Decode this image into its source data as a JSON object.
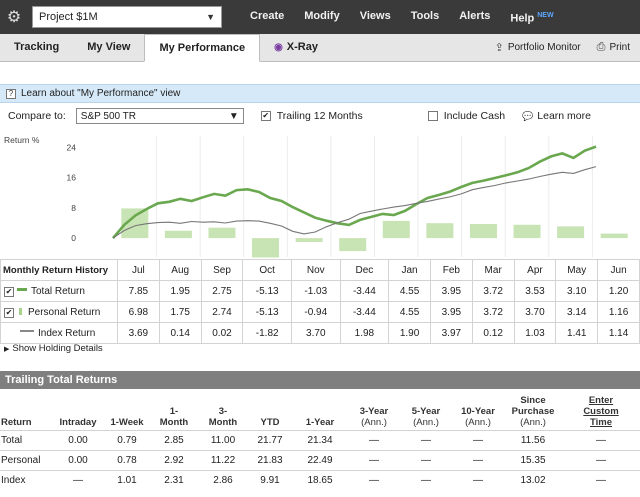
{
  "topbar": {
    "portfolio": "Project $1M",
    "menu": [
      "Create",
      "Modify",
      "Views",
      "Tools",
      "Alerts",
      "Help"
    ],
    "new_badge": "NEW"
  },
  "tabs": {
    "items": [
      "Tracking",
      "My View",
      "My Performance",
      "X-Ray"
    ],
    "active": "My Performance",
    "portfolio_monitor": "Portfolio Monitor",
    "print": "Print"
  },
  "info": {
    "learn_text": "Learn about \"My Performance\" view"
  },
  "compare": {
    "label": "Compare to:",
    "selected": "S&P 500 TR",
    "trailing_label": "Trailing 12 Months",
    "trailing_checked": true,
    "include_cash_label": "Include Cash",
    "include_cash_checked": false,
    "learn_more": "Learn more"
  },
  "chart_data": {
    "type": "line",
    "ylabel": "Return %",
    "yticks": [
      0,
      8,
      16,
      24
    ],
    "ylim": [
      -5,
      27
    ],
    "bars": {
      "categories": [
        "Jul",
        "Aug",
        "Sep",
        "Oct",
        "Nov",
        "Dec",
        "Jan",
        "Feb",
        "Mar",
        "Apr",
        "May",
        "Jun"
      ],
      "values": [
        7.85,
        1.95,
        2.75,
        -5.13,
        -1.03,
        -3.44,
        4.55,
        3.95,
        3.72,
        3.53,
        3.1,
        1.2
      ]
    },
    "series": [
      {
        "name": "Total Return",
        "color": "#6aa84f",
        "points": [
          0,
          3.5,
          6,
          7.7,
          9.2,
          9.6,
          10.4,
          9.8,
          10.8,
          11.7,
          11.2,
          12.7,
          12.9,
          12.2,
          10.6,
          9.8,
          8.2,
          6.8,
          5.4,
          4.6,
          3.9,
          3.5,
          4.8,
          5.6,
          6.4,
          6.1,
          7.2,
          9.0,
          10.6,
          11.4,
          12.3,
          13.5,
          14.6,
          15.2,
          15.9,
          16.6,
          17.4,
          18.5,
          20.2,
          21.6,
          22.4,
          21.2,
          23.1,
          24.2
        ]
      },
      {
        "name": "Index Return",
        "color": "#777777",
        "points": [
          0,
          2.0,
          3.3,
          3.8,
          4.1,
          4.2,
          3.9,
          4.4,
          4.2,
          4.3,
          4.0,
          4.5,
          4.6,
          4.5,
          3.9,
          3.2,
          1.8,
          1.1,
          1.6,
          3.0,
          4.1,
          5.0,
          6.5,
          7.1,
          7.7,
          8.2,
          8.6,
          9.2,
          9.7,
          10.3,
          10.9,
          11.7,
          12.8,
          13.4,
          13.9,
          14.6,
          15.1,
          15.6,
          16.3,
          16.9,
          17.4,
          17.1,
          18.1,
          18.9
        ]
      }
    ]
  },
  "monthly": {
    "title": "Monthly Return History",
    "months": [
      "Jul",
      "Aug",
      "Sep",
      "Oct",
      "Nov",
      "Dec",
      "Jan",
      "Feb",
      "Mar",
      "Apr",
      "May",
      "Jun"
    ],
    "rows": [
      {
        "label": "Total Return",
        "checked": true,
        "values": [
          "7.85",
          "1.95",
          "2.75",
          "-5.13",
          "-1.03",
          "-3.44",
          "4.55",
          "3.95",
          "3.72",
          "3.53",
          "3.10",
          "1.20"
        ]
      },
      {
        "label": "Personal Return",
        "checked": true,
        "values": [
          "6.98",
          "1.75",
          "2.74",
          "-5.13",
          "-0.94",
          "-3.44",
          "4.55",
          "3.95",
          "3.72",
          "3.70",
          "3.14",
          "1.16"
        ]
      },
      {
        "label": "Index Return",
        "checked": null,
        "values": [
          "3.69",
          "0.14",
          "0.02",
          "-1.82",
          "3.70",
          "1.98",
          "1.90",
          "3.97",
          "0.12",
          "1.03",
          "1.41",
          "1.14"
        ]
      }
    ]
  },
  "show_holding": "Show Holding Details",
  "trailing": {
    "title": "Trailing Total Returns",
    "headers": [
      {
        "main": "Return",
        "sub": ""
      },
      {
        "main": "Intraday",
        "sub": ""
      },
      {
        "main": "1-Week",
        "sub": ""
      },
      {
        "main": "1-\nMonth",
        "sub": ""
      },
      {
        "main": "3-\nMonth",
        "sub": ""
      },
      {
        "main": "YTD",
        "sub": ""
      },
      {
        "main": "1-Year",
        "sub": ""
      },
      {
        "main": "3-Year",
        "sub": "(Ann.)"
      },
      {
        "main": "5-Year",
        "sub": "(Ann.)"
      },
      {
        "main": "10-Year",
        "sub": "(Ann.)"
      },
      {
        "main": "Since\nPurchase",
        "sub": "(Ann.)"
      },
      {
        "main": "Enter\nCustom\nTime",
        "sub": ""
      }
    ],
    "rows": [
      [
        "Total",
        "0.00",
        "0.79",
        "2.85",
        "11.00",
        "21.77",
        "21.34",
        "—",
        "—",
        "—",
        "11.56",
        "—"
      ],
      [
        "Personal",
        "0.00",
        "0.78",
        "2.92",
        "11.22",
        "21.83",
        "22.49",
        "—",
        "—",
        "—",
        "15.35",
        "—"
      ],
      [
        "Index",
        "—",
        "1.01",
        "2.31",
        "2.86",
        "9.91",
        "18.65",
        "—",
        "—",
        "—",
        "13.02",
        "—"
      ]
    ]
  }
}
